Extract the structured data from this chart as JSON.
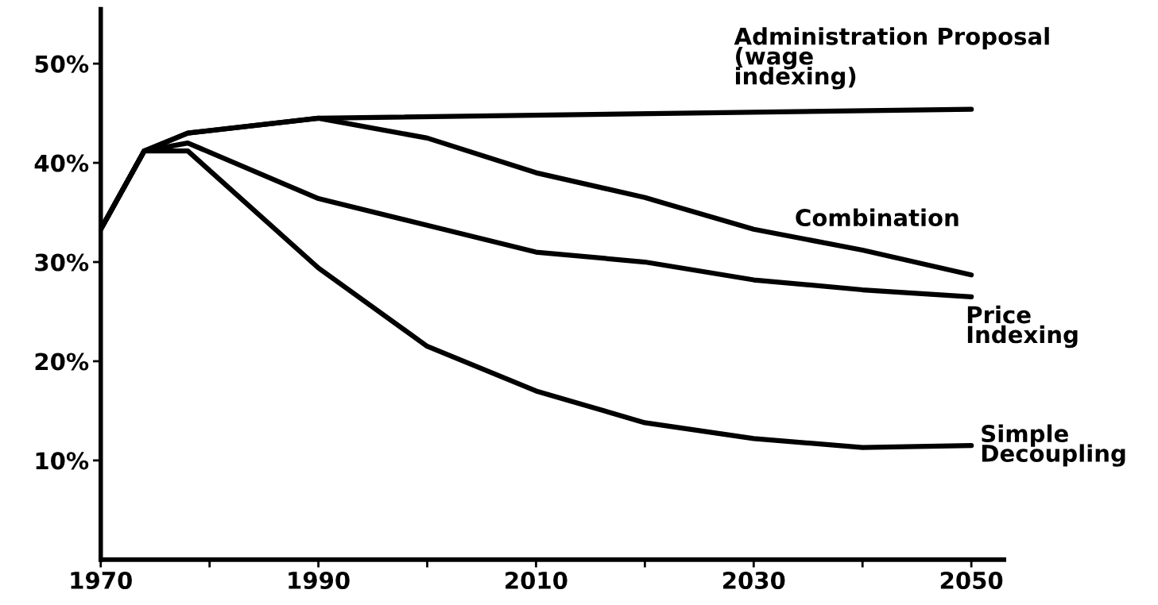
{
  "chart_data": {
    "type": "line",
    "xlim": [
      1970,
      2053
    ],
    "ylim": [
      0,
      55.5
    ],
    "xticks": [
      1970,
      {
        "value": 1980,
        "label": null
      },
      1990,
      {
        "value": 2000,
        "label": null
      },
      2010,
      {
        "value": 2020,
        "label": null
      },
      2030,
      {
        "value": 2040,
        "label": null
      },
      2050
    ],
    "yticks": [
      {
        "value": 10,
        "label": "10%"
      },
      {
        "value": 20,
        "label": "20%"
      },
      {
        "value": 30,
        "label": "30%"
      },
      {
        "value": 40,
        "label": "40%"
      },
      {
        "value": 50,
        "label": "50%"
      }
    ],
    "grid": false,
    "legend": false,
    "marker": "none",
    "line_style": "solid",
    "series": [
      {
        "name": "Administration Proposal\n(wage\nindexing)",
        "color": "#000000",
        "x": [
          1970,
          1974,
          1978,
          1990,
          2050
        ],
        "values": [
          33.3,
          41.2,
          43,
          44.5,
          45.4
        ]
      },
      {
        "name": "Combination",
        "color": "#000000",
        "x": [
          1970,
          1974,
          1978,
          1990,
          2000,
          2010,
          2020,
          2030,
          2040,
          2050
        ],
        "values": [
          33.3,
          41.2,
          43,
          44.5,
          42.5,
          39,
          36.5,
          33.3,
          31.2,
          28.7
        ]
      },
      {
        "name": "Price\nIndexing",
        "color": "#000000",
        "x": [
          1970,
          1974,
          1978,
          1990,
          2000,
          2010,
          2020,
          2030,
          2040,
          2050
        ],
        "values": [
          33.3,
          41.2,
          42,
          36.4,
          33.7,
          31,
          30,
          28.2,
          27.2,
          26.5
        ]
      },
      {
        "name": "Simple\nDecoupling",
        "color": "#000000",
        "x": [
          1970,
          1974,
          1978,
          1990,
          2000,
          2010,
          2020,
          2030,
          2040,
          2050
        ],
        "values": [
          33.3,
          41.2,
          41.2,
          29.4,
          21.5,
          17,
          13.8,
          12.2,
          11.3,
          11.5
        ]
      }
    ]
  }
}
